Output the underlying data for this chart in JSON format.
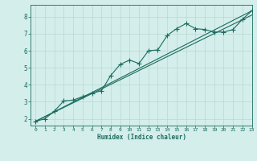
{
  "xlabel": "Humidex (Indice chaleur)",
  "bg_color": "#d4eeeb",
  "line_color": "#1a6b5e",
  "grid_color": "#b8d8d4",
  "xlim": [
    -0.5,
    23
  ],
  "ylim": [
    1.6,
    8.7
  ],
  "xticks": [
    0,
    1,
    2,
    3,
    4,
    5,
    6,
    7,
    8,
    9,
    10,
    11,
    12,
    13,
    14,
    15,
    16,
    17,
    18,
    19,
    20,
    21,
    22,
    23
  ],
  "yticks": [
    2,
    3,
    4,
    5,
    6,
    7,
    8
  ],
  "line1_x": [
    0,
    1,
    2,
    3,
    4,
    5,
    6,
    7,
    8,
    9,
    10,
    11,
    12,
    13,
    14,
    15,
    16,
    17,
    18,
    19,
    20,
    21,
    22,
    23
  ],
  "line1_y": [
    1.85,
    2.0,
    2.45,
    3.05,
    3.1,
    3.3,
    3.5,
    3.65,
    4.55,
    5.2,
    5.45,
    5.25,
    6.0,
    6.05,
    6.9,
    7.3,
    7.6,
    7.3,
    7.25,
    7.1,
    7.1,
    7.25,
    7.85,
    8.35
  ],
  "line2_x": [
    0,
    23
  ],
  "line2_y": [
    1.85,
    8.35
  ],
  "line3_x": [
    0,
    23
  ],
  "line3_y": [
    1.85,
    8.1
  ],
  "marker": "+",
  "marker_size": 4,
  "linewidth": 0.8
}
